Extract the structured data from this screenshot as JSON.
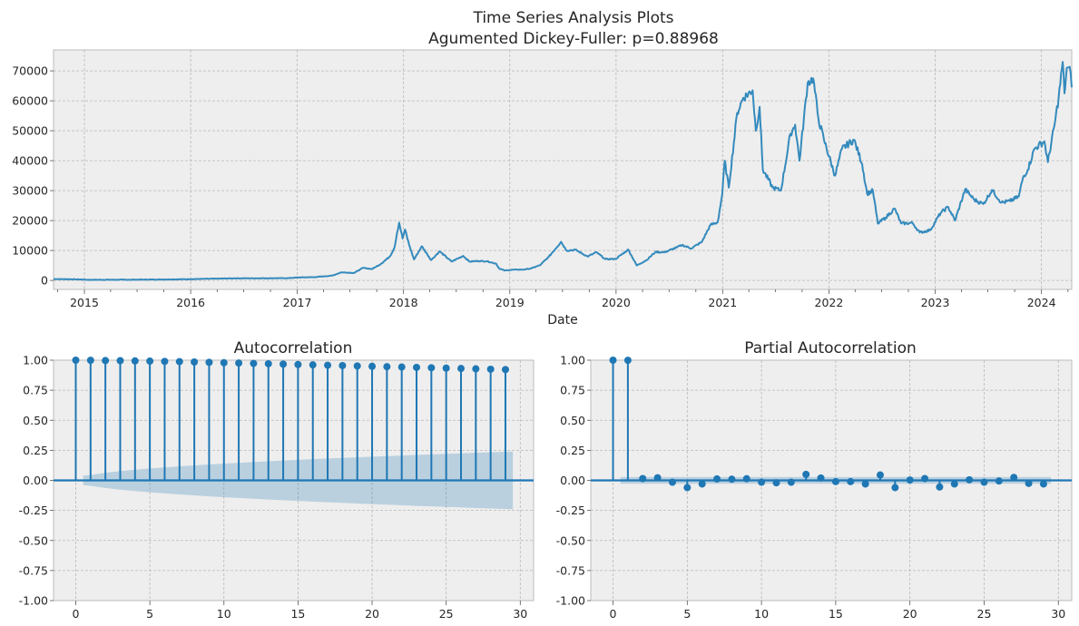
{
  "chart_data": [
    {
      "id": "price",
      "type": "line",
      "title": "Time Series Analysis Plots",
      "subtitle": "Agumented Dickey-Fuller: p=0.88968",
      "xlabel": "Date",
      "ylabel": "",
      "xlim": [
        "2014-09-17",
        "2024-04-14"
      ],
      "ylim": [
        -3000,
        77000
      ],
      "yticks": [
        0,
        10000,
        20000,
        30000,
        40000,
        50000,
        60000,
        70000
      ],
      "xticks": [
        {
          "date": "2015-01-01",
          "label": "2015"
        },
        {
          "date": "2016-01-01",
          "label": "2016"
        },
        {
          "date": "2017-01-01",
          "label": "2017"
        },
        {
          "date": "2018-01-01",
          "label": "2018"
        },
        {
          "date": "2019-01-01",
          "label": "2019"
        },
        {
          "date": "2020-01-01",
          "label": "2020"
        },
        {
          "date": "2021-01-01",
          "label": "2021"
        },
        {
          "date": "2022-01-01",
          "label": "2022"
        },
        {
          "date": "2023-01-01",
          "label": "2023"
        },
        {
          "date": "2024-01-01",
          "label": "2024"
        }
      ],
      "grid": true,
      "series": [
        {
          "color": "#348abd",
          "points": [
            [
              "2014-09-17",
              460
            ],
            [
              "2014-12-01",
              380
            ],
            [
              "2015-01-15",
              210
            ],
            [
              "2015-06-01",
              230
            ],
            [
              "2015-11-01",
              350
            ],
            [
              "2016-01-01",
              430
            ],
            [
              "2016-06-01",
              700
            ],
            [
              "2016-12-01",
              750
            ],
            [
              "2017-01-01",
              980
            ],
            [
              "2017-03-01",
              1100
            ],
            [
              "2017-05-01",
              1600
            ],
            [
              "2017-06-01",
              2700
            ],
            [
              "2017-07-15",
              2500
            ],
            [
              "2017-08-15",
              4200
            ],
            [
              "2017-09-15",
              3800
            ],
            [
              "2017-10-15",
              5500
            ],
            [
              "2017-11-15",
              8000
            ],
            [
              "2017-12-01",
              11000
            ],
            [
              "2017-12-10",
              16000
            ],
            [
              "2017-12-17",
              19300
            ],
            [
              "2017-12-29",
              14000
            ],
            [
              "2018-01-06",
              17000
            ],
            [
              "2018-01-20",
              12000
            ],
            [
              "2018-02-06",
              7000
            ],
            [
              "2018-03-05",
              11400
            ],
            [
              "2018-04-06",
              6800
            ],
            [
              "2018-05-05",
              9700
            ],
            [
              "2018-06-15",
              6300
            ],
            [
              "2018-07-25",
              8200
            ],
            [
              "2018-08-15",
              6300
            ],
            [
              "2018-09-15",
              6500
            ],
            [
              "2018-10-15",
              6400
            ],
            [
              "2018-11-15",
              5600
            ],
            [
              "2018-11-25",
              4000
            ],
            [
              "2018-12-15",
              3300
            ],
            [
              "2019-01-15",
              3600
            ],
            [
              "2019-02-15",
              3600
            ],
            [
              "2019-03-15",
              4000
            ],
            [
              "2019-04-15",
              5100
            ],
            [
              "2019-05-15",
              7900
            ],
            [
              "2019-06-26",
              12900
            ],
            [
              "2019-07-15",
              10000
            ],
            [
              "2019-08-15",
              10200
            ],
            [
              "2019-09-25",
              8000
            ],
            [
              "2019-10-26",
              9400
            ],
            [
              "2019-11-25",
              7100
            ],
            [
              "2019-12-31",
              7200
            ],
            [
              "2020-02-12",
              10300
            ],
            [
              "2020-03-12",
              5000
            ],
            [
              "2020-04-15",
              6800
            ],
            [
              "2020-05-15",
              9500
            ],
            [
              "2020-06-15",
              9400
            ],
            [
              "2020-07-27",
              11000
            ],
            [
              "2020-08-15",
              11800
            ],
            [
              "2020-09-15",
              10700
            ],
            [
              "2020-10-21",
              12800
            ],
            [
              "2020-11-20",
              18500
            ],
            [
              "2020-12-15",
              19400
            ],
            [
              "2020-12-31",
              29000
            ],
            [
              "2021-01-08",
              40000
            ],
            [
              "2021-01-22",
              31000
            ],
            [
              "2021-02-20",
              56000
            ],
            [
              "2021-03-13",
              61000
            ],
            [
              "2021-04-14",
              63500
            ],
            [
              "2021-04-25",
              50000
            ],
            [
              "2021-05-08",
              58000
            ],
            [
              "2021-05-19",
              37000
            ],
            [
              "2021-06-22",
              31000
            ],
            [
              "2021-07-20",
              30000
            ],
            [
              "2021-08-22",
              49000
            ],
            [
              "2021-09-07",
              52000
            ],
            [
              "2021-09-22",
              40000
            ],
            [
              "2021-10-20",
              66000
            ],
            [
              "2021-11-08",
              67500
            ],
            [
              "2021-11-26",
              54000
            ],
            [
              "2021-12-15",
              47000
            ],
            [
              "2022-01-22",
              35000
            ],
            [
              "2022-02-15",
              44000
            ],
            [
              "2022-03-28",
              47000
            ],
            [
              "2022-04-25",
              39000
            ],
            [
              "2022-05-12",
              29000
            ],
            [
              "2022-06-01",
              30000
            ],
            [
              "2022-06-18",
              19000
            ],
            [
              "2022-07-15",
              21000
            ],
            [
              "2022-08-15",
              24000
            ],
            [
              "2022-09-06",
              19000
            ],
            [
              "2022-10-15",
              19200
            ],
            [
              "2022-11-09",
              16000
            ],
            [
              "2022-12-15",
              16800
            ],
            [
              "2023-01-20",
              22600
            ],
            [
              "2023-02-15",
              24500
            ],
            [
              "2023-03-10",
              20000
            ],
            [
              "2023-04-14",
              30400
            ],
            [
              "2023-05-15",
              27000
            ],
            [
              "2023-06-15",
              25500
            ],
            [
              "2023-07-15",
              30200
            ],
            [
              "2023-08-17",
              26000
            ],
            [
              "2023-09-15",
              26500
            ],
            [
              "2023-10-15",
              28000
            ],
            [
              "2023-10-30",
              34500
            ],
            [
              "2023-11-15",
              37000
            ],
            [
              "2023-12-08",
              44000
            ],
            [
              "2024-01-11",
              46500
            ],
            [
              "2024-01-23",
              39500
            ],
            [
              "2024-02-15",
              52000
            ],
            [
              "2024-02-29",
              61000
            ],
            [
              "2024-03-14",
              73000
            ],
            [
              "2024-03-20",
              62500
            ],
            [
              "2024-03-28",
              71000
            ],
            [
              "2024-04-10",
              69500
            ],
            [
              "2024-04-14",
              64500
            ]
          ]
        }
      ]
    },
    {
      "id": "acf",
      "type": "scatter",
      "title": "Autocorrelation",
      "xlim": [
        -1.5,
        30.9
      ],
      "ylim": [
        -1.0,
        1.0
      ],
      "xticks": [
        0,
        5,
        10,
        15,
        20,
        25,
        30
      ],
      "yticks": [
        "-1.00",
        "-0.75",
        "-0.50",
        "-0.25",
        "0.00",
        "0.25",
        "0.50",
        "0.75",
        "1.00"
      ],
      "grid": true,
      "series": [
        {
          "color": "#1f77b4",
          "x": [
            0,
            1,
            2,
            3,
            4,
            5,
            6,
            7,
            8,
            9,
            10,
            11,
            12,
            13,
            14,
            15,
            16,
            17,
            18,
            19,
            20,
            21,
            22,
            23,
            24,
            25,
            26,
            27,
            28,
            29
          ],
          "y": [
            1.0,
            0.999,
            0.997,
            0.996,
            0.994,
            0.992,
            0.99,
            0.988,
            0.985,
            0.982,
            0.979,
            0.976,
            0.973,
            0.97,
            0.967,
            0.964,
            0.961,
            0.958,
            0.955,
            0.952,
            0.949,
            0.946,
            0.943,
            0.94,
            0.937,
            0.934,
            0.931,
            0.928,
            0.925,
            0.922
          ]
        }
      ],
      "confidence_band": {
        "color": "#1f77b4",
        "x": [
          0.5,
          1,
          2,
          3,
          4,
          5,
          6,
          7,
          8,
          9,
          10,
          11,
          12,
          13,
          14,
          15,
          16,
          17,
          18,
          19,
          20,
          21,
          22,
          23,
          24,
          25,
          26,
          27,
          28,
          29.5
        ],
        "upper": [
          0.04,
          0.045,
          0.063,
          0.077,
          0.089,
          0.099,
          0.108,
          0.117,
          0.125,
          0.133,
          0.14,
          0.146,
          0.153,
          0.159,
          0.165,
          0.171,
          0.176,
          0.182,
          0.187,
          0.192,
          0.197,
          0.202,
          0.207,
          0.212,
          0.216,
          0.221,
          0.225,
          0.23,
          0.234,
          0.24
        ]
      }
    },
    {
      "id": "pacf",
      "type": "scatter",
      "title": "Partial Autocorrelation",
      "xlim": [
        -1.5,
        30.9
      ],
      "ylim": [
        -1.0,
        1.0
      ],
      "xticks": [
        0,
        5,
        10,
        15,
        20,
        25,
        30
      ],
      "yticks": [
        "-1.00",
        "-0.75",
        "-0.50",
        "-0.25",
        "0.00",
        "0.25",
        "0.50",
        "0.75",
        "1.00"
      ],
      "grid": true,
      "series": [
        {
          "color": "#1f77b4",
          "x": [
            0,
            1,
            2,
            3,
            4,
            5,
            6,
            7,
            8,
            9,
            10,
            11,
            12,
            13,
            14,
            15,
            16,
            17,
            18,
            19,
            20,
            21,
            22,
            23,
            24,
            25,
            26,
            27,
            28,
            29
          ],
          "y": [
            1.0,
            0.999,
            0.015,
            0.022,
            -0.015,
            -0.06,
            -0.03,
            0.012,
            0.01,
            0.014,
            -0.015,
            -0.02,
            -0.015,
            0.05,
            0.02,
            -0.01,
            -0.01,
            -0.03,
            0.045,
            -0.06,
            0.003,
            0.015,
            -0.055,
            -0.03,
            0.005,
            -0.015,
            -0.005,
            0.025,
            -0.025,
            -0.03
          ]
        }
      ],
      "confidence_band": {
        "color": "#1f77b4",
        "x": [
          0.5,
          29.5
        ],
        "upper": [
          0.028,
          0.028
        ]
      }
    }
  ]
}
